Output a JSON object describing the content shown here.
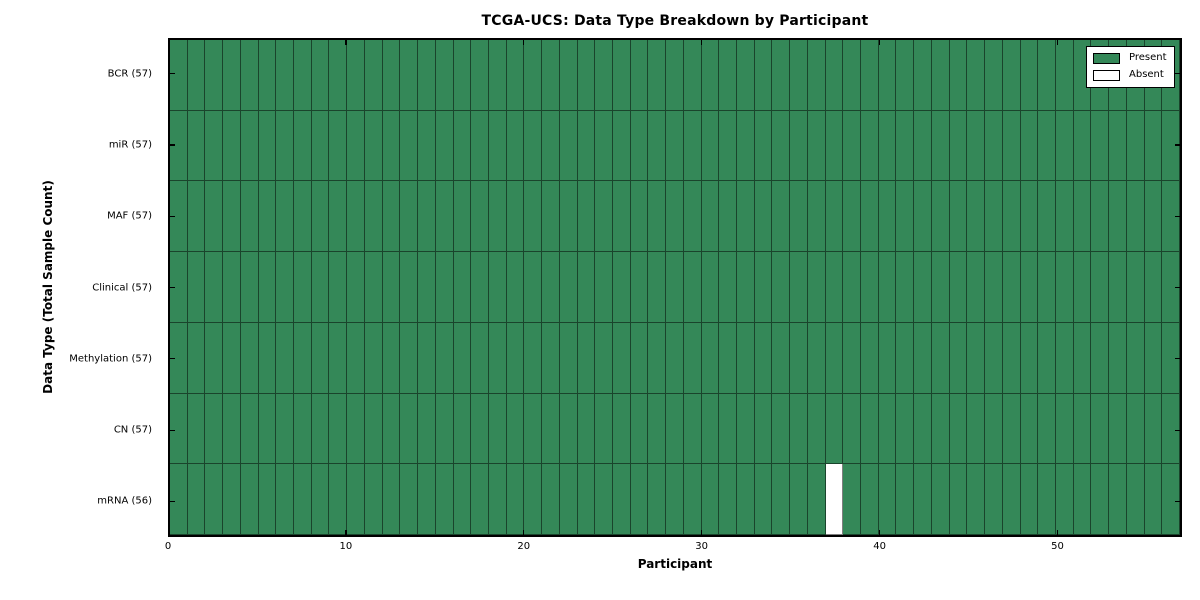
{
  "figure": {
    "background": "#ffffff"
  },
  "chart_data": {
    "type": "heatmap",
    "title": "TCGA-UCS: Data Type Breakdown by Participant",
    "xlabel": "Participant",
    "ylabel": "Data Type (Total Sample Count)",
    "n_participants": 57,
    "x_range": [
      0,
      57
    ],
    "grid": "off",
    "legend_position": "upper right",
    "x_ticks": [
      {
        "value": 0,
        "label": "0"
      },
      {
        "value": 10,
        "label": "10"
      },
      {
        "value": 20,
        "label": "20"
      },
      {
        "value": 30,
        "label": "30"
      },
      {
        "value": 40,
        "label": "40"
      },
      {
        "value": 50,
        "label": "50"
      }
    ],
    "rows": [
      {
        "label": "BCR (57)",
        "data_type": "BCR",
        "sample_count": 57,
        "absent_participants": []
      },
      {
        "label": "miR (57)",
        "data_type": "miR",
        "sample_count": 57,
        "absent_participants": []
      },
      {
        "label": "MAF (57)",
        "data_type": "MAF",
        "sample_count": 57,
        "absent_participants": []
      },
      {
        "label": "Clinical (57)",
        "data_type": "Clinical",
        "sample_count": 57,
        "absent_participants": []
      },
      {
        "label": "Methylation (57)",
        "data_type": "Methylation",
        "sample_count": 57,
        "absent_participants": []
      },
      {
        "label": "CN (57)",
        "data_type": "CN",
        "sample_count": 57,
        "absent_participants": []
      },
      {
        "label": "mRNA (56)",
        "data_type": "mRNA",
        "sample_count": 56,
        "absent_participants": [
          37
        ]
      }
    ],
    "legend": [
      {
        "label": "Present",
        "color": "#348858"
      },
      {
        "label": "Absent",
        "color": "#ffffff"
      }
    ],
    "colors": {
      "present": "#348858",
      "absent": "#ffffff",
      "cell_edge": "rgba(0,0,0,0.50)",
      "frame": "#000000"
    }
  }
}
